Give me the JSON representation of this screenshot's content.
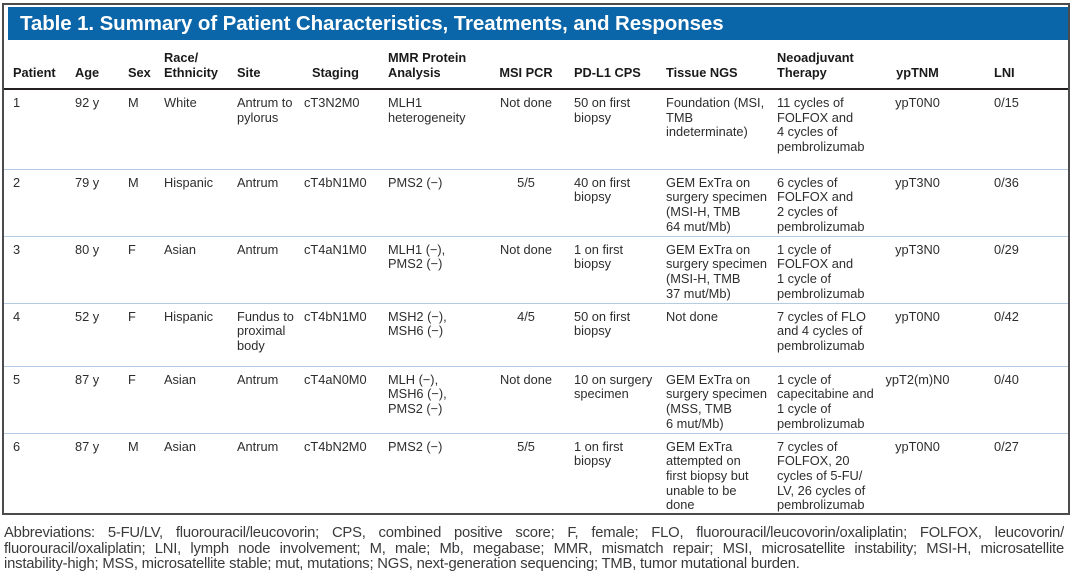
{
  "table": {
    "title": "Table 1. Summary of Patient Characteristics, Treatments, and Responses",
    "columns": [
      "Patient",
      "Age",
      "Sex",
      "Race/\nEthnicity",
      "Site",
      "Staging",
      "MMR Protein\nAnalysis",
      "MSI PCR",
      "PD-L1 CPS",
      "Tissue NGS",
      "Neoadjuvant\nTherapy",
      "ypTNM",
      "LNI"
    ],
    "rows": [
      [
        "1",
        "92 y",
        "M",
        "White",
        "Antrum to\npylorus",
        "cT3N2M0",
        "MLH1\nheterogeneity",
        "Not done",
        "50 on first\nbiopsy",
        "Foundation (MSI,\nTMB\nindeterminate)",
        "11 cycles of\nFOLFOX and\n4 cycles of\npembrolizumab",
        "ypT0N0",
        "0/15"
      ],
      [
        "2",
        "79 y",
        "M",
        "Hispanic",
        "Antrum",
        "cT4bN1M0",
        "PMS2 (−)",
        "5/5",
        "40 on first\nbiopsy",
        "GEM ExTra on\nsurgery specimen\n(MSI-H, TMB\n64 mut/Mb)",
        "6 cycles of\nFOLFOX and\n2 cycles of\npembrolizumab",
        "ypT3N0",
        "0/36"
      ],
      [
        "3",
        "80 y",
        "F",
        "Asian",
        "Antrum",
        "cT4aN1M0",
        "MLH1 (−),\nPMS2 (−)",
        "Not done",
        "1 on first\nbiopsy",
        "GEM ExTra on\nsurgery specimen\n(MSI-H, TMB\n37 mut/Mb)",
        "1 cycle of\nFOLFOX and\n1 cycle of\npembrolizumab",
        "ypT3N0",
        "0/29"
      ],
      [
        "4",
        "52 y",
        "F",
        "Hispanic",
        "Fundus to\nproximal\nbody",
        "cT4bN1M0",
        "MSH2 (−),\nMSH6 (−)",
        "4/5",
        "50 on first\nbiopsy",
        "Not done",
        "7 cycles of FLO\nand 4 cycles of\npembrolizumab",
        "ypT0N0",
        "0/42"
      ],
      [
        "5",
        "87 y",
        "F",
        "Asian",
        "Antrum",
        "cT4aN0M0",
        "MLH (−),\nMSH6 (−),\nPMS2 (−)",
        "Not done",
        "10 on surgery\nspecimen",
        "GEM ExTra on\nsurgery specimen\n(MSS, TMB\n6 mut/Mb)",
        "1 cycle of\ncapecitabine and\n1 cycle of\npembrolizumab",
        "ypT2(m)N0",
        "0/40"
      ],
      [
        "6",
        "87 y",
        "M",
        "Asian",
        "Antrum",
        "cT4bN2M0",
        "PMS2 (−)",
        "5/5",
        "1 on first\nbiopsy",
        "GEM ExTra\nattempted on\nfirst biopsy but\nunable to be\ndone",
        "7 cycles of\nFOLFOX, 20\ncycles of 5-FU/\nLV, 26 cycles of\npembrolizumab",
        "ypT0N0",
        "0/27"
      ]
    ]
  },
  "footnote": "Abbreviations: 5-FU/LV, fluorouracil/leucovorin; CPS, combined positive score; F, female; FLO, fluorouracil/leucovorin/oxaliplatin; FOLFOX, leucovorin/\nfluorouracil/oxaliplatin; LNI, lymph node involvement; M, male; Mb, megabase; MMR, mismatch repair; MSI, microsatellite instability; MSI-H, microsatellite\ninstability-high; MSS, microsatellite stable; mut, mutations; NGS, next-generation sequencing; TMB, tumor mutational burden.",
  "colors": {
    "header_bar": "#0a66a9",
    "row_divider": "#b3cce4",
    "outer_border": "#4b4b4d"
  }
}
